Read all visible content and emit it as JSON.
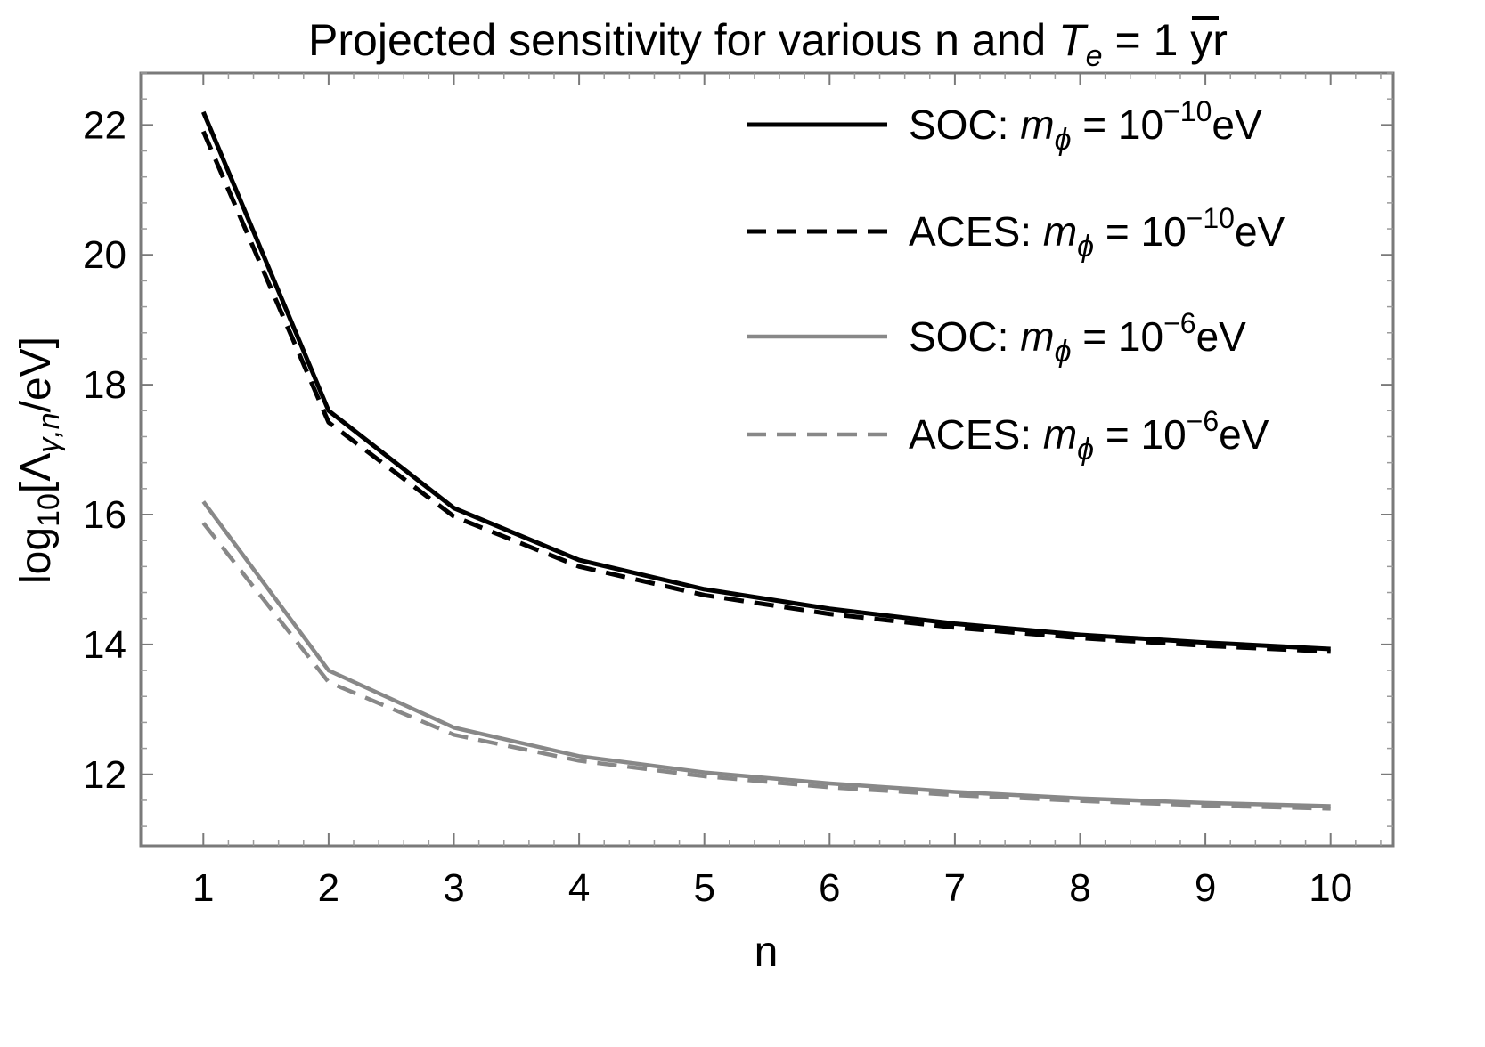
{
  "chart_data": {
    "type": "line",
    "title": "Projected sensitivity for various n and T̅e = 1 yr",
    "title_parts": {
      "lead": "Projected sensitivity for various n and ",
      "var": "T",
      "sub": "e",
      "tail": " = 1 yr"
    },
    "xlabel": "n",
    "ylabel": "log10[Λγ,n/eV]",
    "ylabel_parts": {
      "lead": "log",
      "sub1": "10",
      "mid": "[Λ",
      "sub2": "γ,n",
      "tail": "/eV]"
    },
    "x": [
      1,
      2,
      3,
      4,
      5,
      6,
      7,
      8,
      9,
      10
    ],
    "xlim": [
      0.5,
      10.5
    ],
    "ylim": [
      10.9,
      22.8
    ],
    "xticks": [
      1,
      2,
      3,
      4,
      5,
      6,
      7,
      8,
      9,
      10
    ],
    "yticks": [
      12,
      14,
      16,
      18,
      20,
      22
    ],
    "grid": false,
    "legend_position": "top-right",
    "series": [
      {
        "name": "SOC: mϕ = 10^-10 eV",
        "label_lead": "SOC: ",
        "exponent": "−10",
        "color": "#000000",
        "dash": "solid",
        "values": [
          22.2,
          17.6,
          16.1,
          15.3,
          14.85,
          14.55,
          14.32,
          14.15,
          14.03,
          13.93
        ]
      },
      {
        "name": "ACES: mϕ = 10^-10 eV",
        "label_lead": "ACES: ",
        "exponent": "−10",
        "color": "#000000",
        "dash": "dashed",
        "values": [
          21.9,
          17.42,
          15.97,
          15.2,
          14.76,
          14.47,
          14.26,
          14.1,
          13.98,
          13.89
        ]
      },
      {
        "name": "SOC: mϕ = 10^-6 eV",
        "label_lead": "SOC: ",
        "exponent": "−6",
        "color": "#888888",
        "dash": "solid",
        "values": [
          16.2,
          13.6,
          12.72,
          12.28,
          12.03,
          11.86,
          11.73,
          11.63,
          11.56,
          11.51
        ]
      },
      {
        "name": "ACES: mϕ = 10^-6 eV",
        "label_lead": "ACES: ",
        "exponent": "−6",
        "color": "#888888",
        "dash": "dashed",
        "values": [
          15.87,
          13.42,
          12.61,
          12.21,
          11.97,
          11.8,
          11.68,
          11.59,
          11.52,
          11.47
        ]
      }
    ]
  }
}
